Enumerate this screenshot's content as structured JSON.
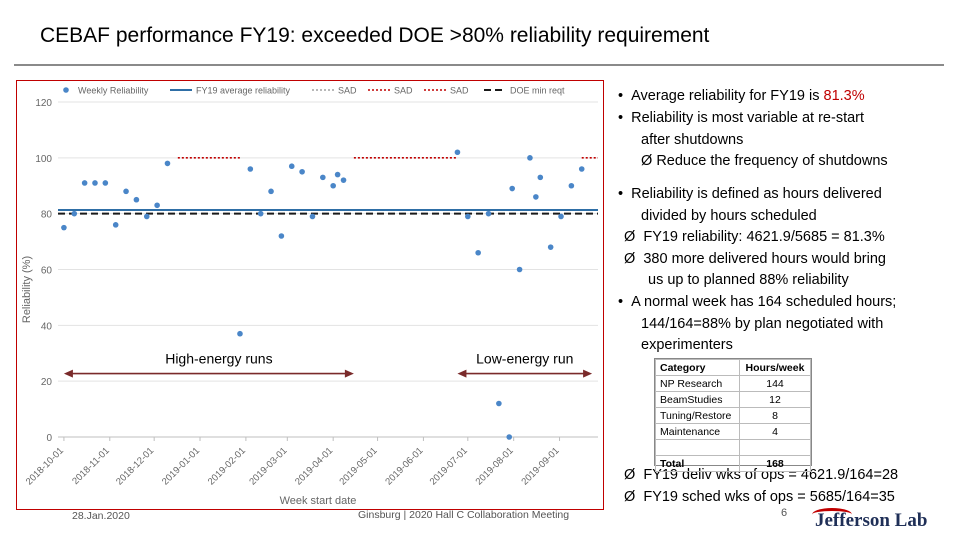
{
  "slide": {
    "title": "CEBAF performance FY19:  exceeded DOE >80% reliability requirement",
    "footer_date": "28.Jan.2020",
    "footer_center": "Ginsburg | 2020 Hall C Collaboration Meeting",
    "page_number": "6",
    "logo_text": "Jefferson Lab"
  },
  "bullets": {
    "b1_prefix": "Average reliability for FY19 is ",
    "b1_value": "81.3%",
    "b2_line1": "Reliability is most variable at re-start",
    "b2_line2": "after shutdowns",
    "b2_sub": "Reduce the frequency of shutdowns",
    "b3_line1": "Reliability is defined as hours delivered",
    "b3_line2": "divided by hours scheduled",
    "b3_sub1": "FY19 reliability: 4621.9/5685  = 81.3%",
    "b3_sub2_line1": "380 more delivered hours would bring",
    "b3_sub2_line2": "us up to planned 88% reliability",
    "b4_line1": "A normal week has 164 scheduled hours;",
    "b4_line2": "144/164=88% by plan negotiated with",
    "b4_line3": "experimenters",
    "b5_sub1": "FY19 deliv wks of ops = 4621.9/164=28",
    "b5_sub2": "FY19 sched wks of ops = 5685/164=35",
    "bullet_glyph": "•",
    "arrow_glyph": "Ø"
  },
  "hours_table": {
    "headers": [
      "Category",
      "Hours/week"
    ],
    "rows": [
      [
        "NP Research",
        "144"
      ],
      [
        "BeamStudies",
        "12"
      ],
      [
        "Tuning/Restore",
        "8"
      ],
      [
        "Maintenance",
        "4"
      ]
    ],
    "total": [
      "Total",
      "168"
    ]
  },
  "chart_data": {
    "type": "scatter",
    "xlabel": "Week start date",
    "ylabel": "Reliability (%)",
    "ylim": [
      0,
      120
    ],
    "y_ticks": [
      0,
      20,
      40,
      60,
      80,
      100,
      120
    ],
    "grid": true,
    "x_range": [
      "2018-09-27",
      "2019-09-27"
    ],
    "x_tick_labels": [
      "2018-10-01",
      "2018-11-01",
      "2018-12-01",
      "2019-01-01",
      "2019-02-01",
      "2019-03-01",
      "2019-04-01",
      "2019-05-01",
      "2019-06-01",
      "2019-07-01",
      "2019-08-01",
      "2019-09-01"
    ],
    "legend": [
      "Weekly Reliability",
      "FY19 average reliability",
      "SAD",
      "SAD",
      "SAD",
      "DOE min reqt"
    ],
    "legend_position": "top",
    "series": [
      {
        "name": "Weekly Reliability",
        "points": [
          [
            "2018-10-01",
            75
          ],
          [
            "2018-10-08",
            80
          ],
          [
            "2018-10-15",
            91
          ],
          [
            "2018-10-22",
            91
          ],
          [
            "2018-10-29",
            91
          ],
          [
            "2018-11-05",
            76
          ],
          [
            "2018-11-12",
            88
          ],
          [
            "2018-11-19",
            85
          ],
          [
            "2018-11-26",
            79
          ],
          [
            "2018-12-03",
            83
          ],
          [
            "2018-12-10",
            98
          ],
          [
            "2019-01-28",
            37
          ],
          [
            "2019-02-04",
            96
          ],
          [
            "2019-02-11",
            80
          ],
          [
            "2019-02-18",
            88
          ],
          [
            "2019-02-25",
            72
          ],
          [
            "2019-03-04",
            97
          ],
          [
            "2019-03-11",
            95
          ],
          [
            "2019-03-18",
            79
          ],
          [
            "2019-03-25",
            93
          ],
          [
            "2019-04-01",
            90
          ],
          [
            "2019-04-04",
            94
          ],
          [
            "2019-04-08",
            92
          ],
          [
            "2019-06-24",
            102
          ],
          [
            "2019-07-01",
            79
          ],
          [
            "2019-07-08",
            66
          ],
          [
            "2019-07-15",
            80
          ],
          [
            "2019-07-22",
            12
          ],
          [
            "2019-07-29",
            0
          ],
          [
            "2019-07-31",
            89
          ],
          [
            "2019-08-05",
            60
          ],
          [
            "2019-08-12",
            100
          ],
          [
            "2019-08-16",
            86
          ],
          [
            "2019-08-19",
            93
          ],
          [
            "2019-08-26",
            68
          ],
          [
            "2019-09-02",
            79
          ],
          [
            "2019-09-09",
            90
          ],
          [
            "2019-09-16",
            96
          ]
        ]
      },
      {
        "name": "FY19 average reliability",
        "value": 81.3
      },
      {
        "name": "SAD",
        "level": 100,
        "x": [
          "2018-12-17",
          "2019-01-28"
        ]
      },
      {
        "name": "SAD",
        "level": 100,
        "x": [
          "2019-04-15",
          "2019-06-24"
        ]
      },
      {
        "name": "SAD",
        "level": 100,
        "x": [
          "2019-09-16",
          "2019-09-27"
        ]
      },
      {
        "name": "DOE min reqt",
        "value": 80
      }
    ],
    "annotations": [
      {
        "text": "High-energy runs",
        "x_span": [
          "2018-10-01",
          "2019-04-15"
        ],
        "y": 22
      },
      {
        "text": "Low-energy run",
        "x_span": [
          "2019-06-24",
          "2019-09-23"
        ],
        "y": 22
      }
    ]
  }
}
